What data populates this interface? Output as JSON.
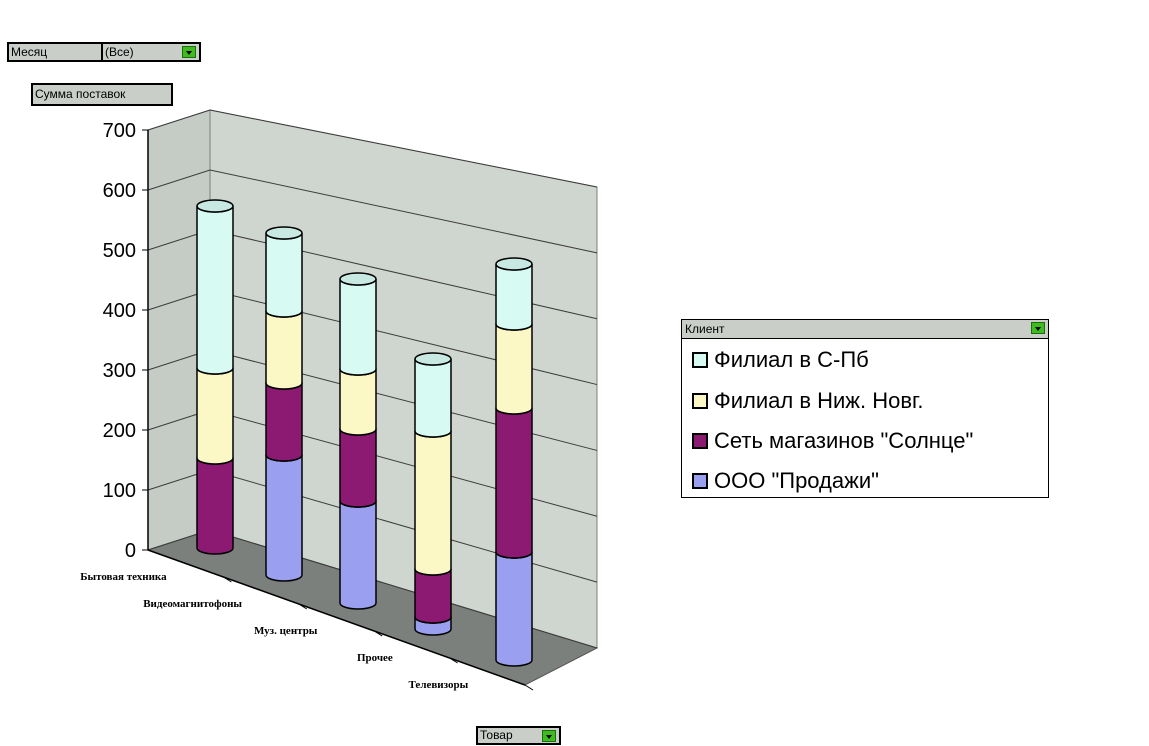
{
  "page_field": {
    "label": "Месяц",
    "value": "(Все)"
  },
  "data_field": {
    "label": "Сумма поставок"
  },
  "category_field": {
    "label": "Товар"
  },
  "legend": {
    "title": "Клиент"
  },
  "chart_data": {
    "type": "bar",
    "stacked": true,
    "three_d": true,
    "categories": [
      "Бытовая техника",
      "Видеомагнитофоны",
      "Муз. центры",
      "Прочее",
      "Телевизоры"
    ],
    "series": [
      {
        "name": "ООО \"Продажи\"",
        "values": [
          0,
          200,
          170,
          20,
          180
        ],
        "color": "#9aa0ef"
      },
      {
        "name": "Сеть магазинов \"Солнце\"",
        "values": [
          150,
          120,
          120,
          80,
          240
        ],
        "color": "#8c1a72"
      },
      {
        "name": "Филиал в Ниж. Новг.",
        "values": [
          150,
          120,
          100,
          230,
          140
        ],
        "color": "#fcf8c6"
      },
      {
        "name": "Филиал в С-Пб",
        "values": [
          270,
          130,
          150,
          120,
          100
        ],
        "color": "#d7fbf3"
      }
    ],
    "legend_order": [
      3,
      2,
      1,
      0
    ],
    "yticks": [
      0,
      100,
      200,
      300,
      400,
      500,
      600,
      700
    ],
    "ylim": [
      0,
      700
    ],
    "grid": true,
    "legend_position": "right"
  }
}
